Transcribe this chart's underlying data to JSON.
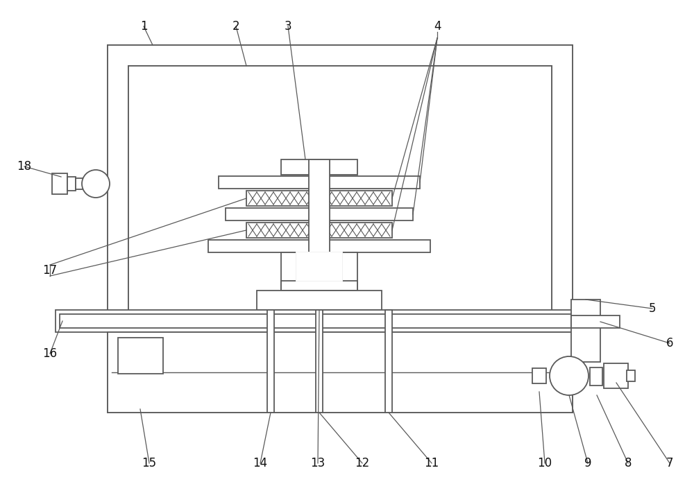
{
  "figsize": [
    10.0,
    7.24
  ],
  "dpi": 100,
  "bg_color": "#ffffff",
  "line_color": "#5a5a5a",
  "line_width": 1.3,
  "label_fontsize": 12,
  "label_color": "#111111"
}
